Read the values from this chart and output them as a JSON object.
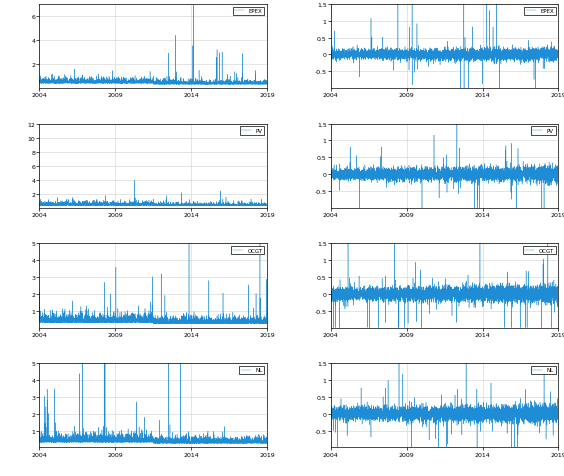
{
  "nrows": 4,
  "ncols": 2,
  "figsize": [
    5.64,
    4.77
  ],
  "dpi": 100,
  "line_color": "#1f8dd6",
  "line_width": 0.3,
  "background_color": "#ffffff",
  "grid_color": "#d0d0d0",
  "legend_labels": [
    "EPEX",
    "EPEX",
    "PV",
    "PV",
    "OCGT",
    "OCGT",
    "NL",
    "NL"
  ],
  "x_start": 2004.0,
  "x_end": 2019.0,
  "x_ticks": [
    2004,
    2009,
    2014,
    2019
  ],
  "panels": [
    {
      "ylim": [
        0,
        7
      ],
      "yticks": [
        2,
        4,
        6
      ],
      "ylabel_side": "left"
    },
    {
      "ylim": [
        -1.0,
        1.5
      ],
      "yticks": [
        -0.5,
        0,
        0.5,
        1.0,
        1.5
      ],
      "ylabel_side": "right"
    },
    {
      "ylim": [
        0,
        12
      ],
      "yticks": [
        2,
        4,
        6,
        8,
        10,
        12
      ],
      "ylabel_side": "left"
    },
    {
      "ylim": [
        -1.0,
        1.5
      ],
      "yticks": [
        -0.5,
        0,
        0.5,
        1.0,
        1.5
      ],
      "ylabel_side": "right"
    },
    {
      "ylim": [
        0,
        5
      ],
      "yticks": [
        1,
        2,
        3,
        4,
        5
      ],
      "ylabel_side": "left"
    },
    {
      "ylim": [
        -1.0,
        1.5
      ],
      "yticks": [
        -0.5,
        0,
        0.5,
        1.0,
        1.5
      ],
      "ylabel_side": "right"
    },
    {
      "ylim": [
        0,
        5
      ],
      "yticks": [
        1,
        2,
        3,
        4,
        5
      ],
      "ylabel_side": "left"
    },
    {
      "ylim": [
        -1.0,
        1.5
      ],
      "yticks": [
        -0.5,
        0,
        0.5,
        1.0,
        1.5
      ],
      "ylabel_side": "right"
    }
  ]
}
